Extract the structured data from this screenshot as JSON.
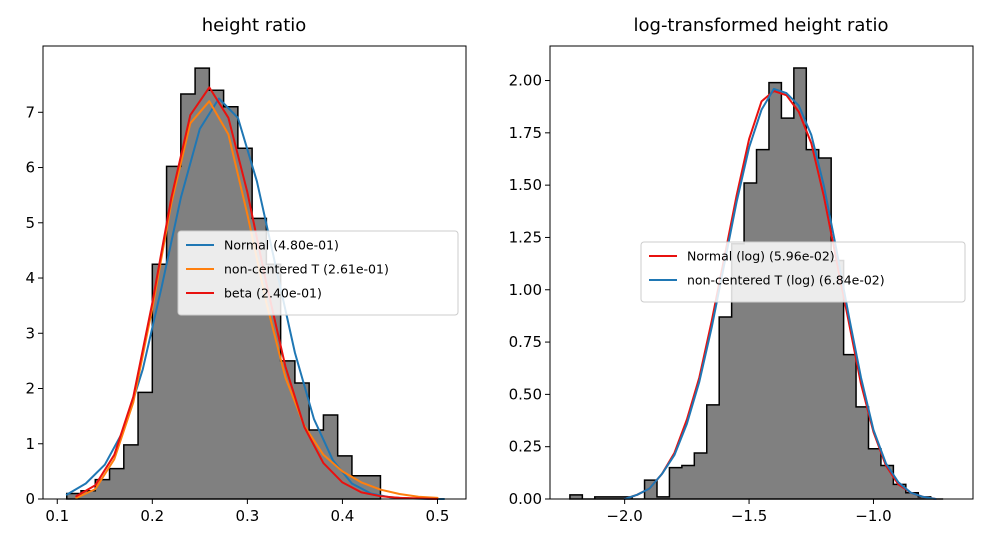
{
  "chart_data": [
    {
      "type": "histogram",
      "title": "height ratio",
      "xlabel": "",
      "ylabel": "",
      "xlim": [
        0.085,
        0.53
      ],
      "ylim": [
        0,
        8.2
      ],
      "xticks": [
        0.1,
        0.2,
        0.3,
        0.4,
        0.5
      ],
      "xtick_labels": [
        "0.1",
        "0.2",
        "0.3",
        "0.4",
        "0.5"
      ],
      "yticks": [
        0,
        1,
        2,
        3,
        4,
        5,
        6,
        7
      ],
      "ytick_labels": [
        "0",
        "1",
        "2",
        "3",
        "4",
        "5",
        "6",
        "7"
      ],
      "grid": false,
      "legend_position": "center-right",
      "histogram": {
        "bin_edges": [
          0.11,
          0.125,
          0.14,
          0.155,
          0.17,
          0.185,
          0.2,
          0.215,
          0.23,
          0.245,
          0.26,
          0.275,
          0.29,
          0.305,
          0.32,
          0.335,
          0.35,
          0.365,
          0.38,
          0.395,
          0.41,
          0.425,
          0.44
        ],
        "counts": [
          0.1,
          0.15,
          0.35,
          0.55,
          0.98,
          1.93,
          4.25,
          6.02,
          7.33,
          7.8,
          7.4,
          7.1,
          6.35,
          5.08,
          4.25,
          2.5,
          2.1,
          1.25,
          1.52,
          0.78,
          0.42,
          0.42
        ],
        "fill": "#808080",
        "edge": "#000000"
      },
      "series": [
        {
          "name": "Normal (4.80e-01)",
          "color": "#1f77b4",
          "x": [
            0.11,
            0.13,
            0.15,
            0.17,
            0.19,
            0.21,
            0.23,
            0.25,
            0.27,
            0.29,
            0.31,
            0.33,
            0.35,
            0.37,
            0.39,
            0.41,
            0.43,
            0.45,
            0.47,
            0.49,
            0.507
          ],
          "y": [
            0.08,
            0.28,
            0.62,
            1.25,
            2.35,
            3.85,
            5.45,
            6.7,
            7.25,
            6.9,
            5.75,
            4.2,
            2.65,
            1.45,
            0.7,
            0.28,
            0.1,
            0.03,
            0.01,
            0.0,
            0.0
          ]
        },
        {
          "name": "non-centered T (2.61e-01)",
          "color": "#ff7f0e",
          "x": [
            0.12,
            0.14,
            0.16,
            0.18,
            0.2,
            0.22,
            0.24,
            0.26,
            0.28,
            0.3,
            0.32,
            0.34,
            0.36,
            0.38,
            0.4,
            0.42,
            0.44,
            0.46,
            0.48,
            0.5
          ],
          "y": [
            0.02,
            0.18,
            0.72,
            1.75,
            3.45,
            5.35,
            6.8,
            7.2,
            6.6,
            5.15,
            3.55,
            2.2,
            1.32,
            0.8,
            0.5,
            0.3,
            0.17,
            0.09,
            0.04,
            0.02
          ]
        },
        {
          "name": "beta (2.40e-01)",
          "color": "#e8110f",
          "x": [
            0.12,
            0.14,
            0.16,
            0.18,
            0.2,
            0.22,
            0.24,
            0.26,
            0.28,
            0.3,
            0.32,
            0.34,
            0.36,
            0.38,
            0.4,
            0.42,
            0.44,
            0.46,
            0.48,
            0.5
          ],
          "y": [
            0.05,
            0.25,
            0.8,
            1.85,
            3.55,
            5.45,
            6.95,
            7.45,
            6.9,
            5.55,
            3.9,
            2.4,
            1.3,
            0.65,
            0.3,
            0.12,
            0.05,
            0.02,
            0.01,
            0.0
          ]
        }
      ]
    },
    {
      "type": "histogram",
      "title": "log-transformed height ratio",
      "xlabel": "",
      "ylabel": "",
      "xlim": [
        -2.3,
        -0.6
      ],
      "ylim": [
        0,
        2.165
      ],
      "xticks": [
        -2.0,
        -1.5,
        -1.0
      ],
      "xtick_labels": [
        "−2.0",
        "−1.5",
        "−1.0"
      ],
      "yticks": [
        0,
        0.25,
        0.5,
        0.75,
        1.0,
        1.25,
        1.5,
        1.75,
        2.0
      ],
      "ytick_labels": [
        "0.00",
        "0.25",
        "0.50",
        "0.75",
        "1.00",
        "1.25",
        "1.50",
        "1.75",
        "2.00"
      ],
      "grid": false,
      "legend_position": "center-right",
      "histogram": {
        "bin_edges": [
          -2.22,
          -2.17,
          -2.12,
          -2.07,
          -2.02,
          -1.97,
          -1.92,
          -1.87,
          -1.82,
          -1.77,
          -1.72,
          -1.67,
          -1.62,
          -1.57,
          -1.52,
          -1.47,
          -1.42,
          -1.37,
          -1.32,
          -1.27,
          -1.22,
          -1.17,
          -1.12,
          -1.07,
          -1.02,
          -0.97,
          -0.92,
          -0.87,
          -0.82,
          -0.77,
          -0.72
        ],
        "counts": [
          0.02,
          0.0,
          0.01,
          0.01,
          0.01,
          0.0,
          0.09,
          0.01,
          0.15,
          0.16,
          0.22,
          0.45,
          0.87,
          1.22,
          1.51,
          1.67,
          1.99,
          1.82,
          2.06,
          1.67,
          1.63,
          1.14,
          0.69,
          0.44,
          0.24,
          0.16,
          0.07,
          0.03,
          0.01,
          0.0
        ],
        "fill": "#808080",
        "edge": "#000000"
      },
      "series": [
        {
          "name": "Normal (log) (5.96e-02)",
          "color": "#e8110f",
          "x": [
            -2.0,
            -1.95,
            -1.9,
            -1.85,
            -1.8,
            -1.75,
            -1.7,
            -1.65,
            -1.6,
            -1.55,
            -1.5,
            -1.45,
            -1.4,
            -1.35,
            -1.3,
            -1.25,
            -1.2,
            -1.15,
            -1.1,
            -1.05,
            -1.0,
            -0.95,
            -0.9,
            -0.85,
            -0.8,
            -0.75
          ],
          "y": [
            0.0,
            0.02,
            0.05,
            0.12,
            0.22,
            0.38,
            0.58,
            0.85,
            1.15,
            1.45,
            1.72,
            1.9,
            1.95,
            1.93,
            1.85,
            1.7,
            1.45,
            1.15,
            0.85,
            0.55,
            0.32,
            0.16,
            0.07,
            0.03,
            0.01,
            0.0
          ]
        },
        {
          "name": "non-centered T (log) (6.84e-02)",
          "color": "#1f77b4",
          "x": [
            -2.0,
            -1.95,
            -1.9,
            -1.85,
            -1.8,
            -1.75,
            -1.7,
            -1.65,
            -1.6,
            -1.55,
            -1.5,
            -1.45,
            -1.4,
            -1.35,
            -1.3,
            -1.25,
            -1.2,
            -1.15,
            -1.1,
            -1.05,
            -1.0,
            -0.95,
            -0.9,
            -0.85,
            -0.8,
            -0.75
          ],
          "y": [
            0.0,
            0.02,
            0.05,
            0.12,
            0.21,
            0.36,
            0.56,
            0.82,
            1.12,
            1.42,
            1.68,
            1.86,
            1.96,
            1.94,
            1.88,
            1.74,
            1.5,
            1.2,
            0.88,
            0.58,
            0.33,
            0.17,
            0.08,
            0.03,
            0.01,
            0.0
          ]
        }
      ]
    }
  ]
}
